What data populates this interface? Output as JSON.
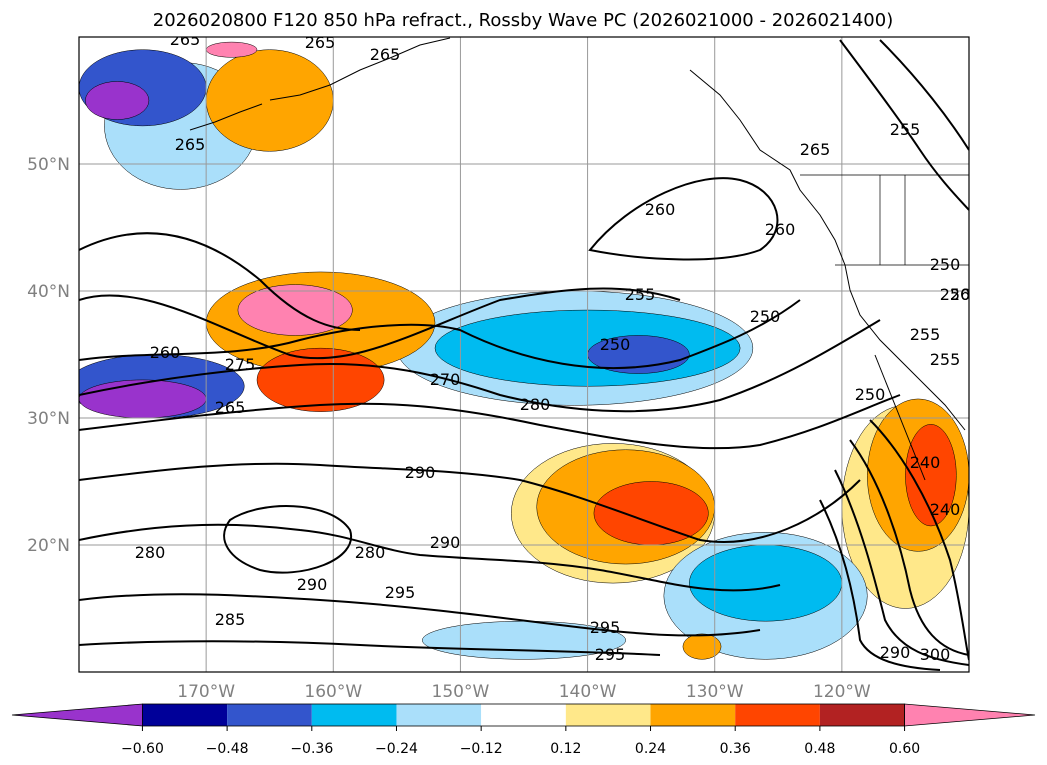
{
  "chart_data": {
    "type": "heatmap",
    "title": "2026020800 F120 850 hPa refract., Rossby Wave PC (2026021000 - 2026021400)",
    "projection": "map",
    "lon_range": [
      -180,
      -110
    ],
    "lat_range": [
      10,
      60
    ],
    "x_ticks": [
      "170°W",
      "160°W",
      "150°W",
      "140°W",
      "130°W",
      "120°W"
    ],
    "y_ticks": [
      "20°N",
      "30°N",
      "40°N",
      "50°N"
    ],
    "grid": true,
    "colorbar": {
      "orientation": "horizontal",
      "extend": "both",
      "levels": [
        -0.6,
        -0.48,
        -0.36,
        -0.24,
        -0.12,
        0.12,
        0.24,
        0.36,
        0.48,
        0.6
      ],
      "tick_labels": [
        "−0.60",
        "−0.48",
        "−0.36",
        "−0.24",
        "−0.12",
        "0.12",
        "0.24",
        "0.36",
        "0.48",
        "0.60"
      ],
      "colors": [
        "#9933cc",
        "#000099",
        "#3355cc",
        "#00bbf0",
        "#aadffa",
        "#ffffff",
        "#ffe88a",
        "#ffa500",
        "#ff4500",
        "#b22222",
        "#ff82b0"
      ]
    },
    "contours": {
      "variable": "850 hPa refractivity",
      "color": "#000000",
      "labels": [
        "265",
        "265",
        "265",
        "260",
        "260",
        "255",
        "250",
        "250",
        "255",
        "250",
        "260",
        "275",
        "265",
        "270",
        "280",
        "290",
        "280",
        "280",
        "290",
        "290",
        "295",
        "285",
        "295",
        "295",
        "250",
        "255",
        "265",
        "255",
        "250",
        "265",
        "240",
        "240",
        "290",
        "300",
        "26"
      ]
    },
    "shaded_regions": [
      {
        "category": "0.60",
        "lon": -163,
        "lat": 38.5,
        "dlon": 9,
        "dlat": 4
      },
      {
        "category": "0.60",
        "lon": -168,
        "lat": 59,
        "dlon": 4,
        "dlat": 1.2
      },
      {
        "category": "0.48",
        "lon": -161,
        "lat": 33,
        "dlon": 10,
        "dlat": 5
      },
      {
        "category": "0.48",
        "lon": -135,
        "lat": 22.5,
        "dlon": 9,
        "dlat": 5
      },
      {
        "category": "0.48",
        "lon": -113,
        "lat": 25.5,
        "dlon": 4,
        "dlat": 8
      },
      {
        "category": "0.36",
        "lon": -161,
        "lat": 37.5,
        "dlon": 18,
        "dlat": 8
      },
      {
        "category": "0.36",
        "lon": -137,
        "lat": 23,
        "dlon": 14,
        "dlat": 9
      },
      {
        "category": "0.36",
        "lon": -114,
        "lat": 25.5,
        "dlon": 8,
        "dlat": 12
      },
      {
        "category": "0.36",
        "lon": -165,
        "lat": 55,
        "dlon": 10,
        "dlat": 8
      },
      {
        "category": "0.36",
        "lon": -131,
        "lat": 12,
        "dlon": 3,
        "dlat": 2
      },
      {
        "category": "0.24",
        "lon": -115,
        "lat": 23,
        "dlon": 10,
        "dlat": 16
      },
      {
        "category": "0.24",
        "lon": -138,
        "lat": 22.5,
        "dlon": 16,
        "dlat": 11
      },
      {
        "category": "-0.60",
        "lon": -175,
        "lat": 31.5,
        "dlon": 10,
        "dlat": 3
      },
      {
        "category": "-0.60",
        "lon": -177,
        "lat": 55,
        "dlon": 5,
        "dlat": 3
      },
      {
        "category": "-0.48",
        "lon": -174,
        "lat": 32.5,
        "dlon": 14,
        "dlat": 5
      },
      {
        "category": "-0.48",
        "lon": -136,
        "lat": 35,
        "dlon": 8,
        "dlat": 3
      },
      {
        "category": "-0.48",
        "lon": -175,
        "lat": 56,
        "dlon": 10,
        "dlat": 6
      },
      {
        "category": "-0.36",
        "lon": -140,
        "lat": 35.5,
        "dlon": 24,
        "dlat": 6
      },
      {
        "category": "-0.36",
        "lon": -126,
        "lat": 17,
        "dlon": 12,
        "dlat": 6
      },
      {
        "category": "-0.24",
        "lon": -141,
        "lat": 35.5,
        "dlon": 28,
        "dlat": 9
      },
      {
        "category": "-0.24",
        "lon": -126,
        "lat": 16,
        "dlon": 16,
        "dlat": 10
      },
      {
        "category": "-0.24",
        "lon": -145,
        "lat": 12.5,
        "dlon": 16,
        "dlat": 3
      },
      {
        "category": "-0.24",
        "lon": -172,
        "lat": 53,
        "dlon": 12,
        "dlat": 10
      }
    ]
  }
}
